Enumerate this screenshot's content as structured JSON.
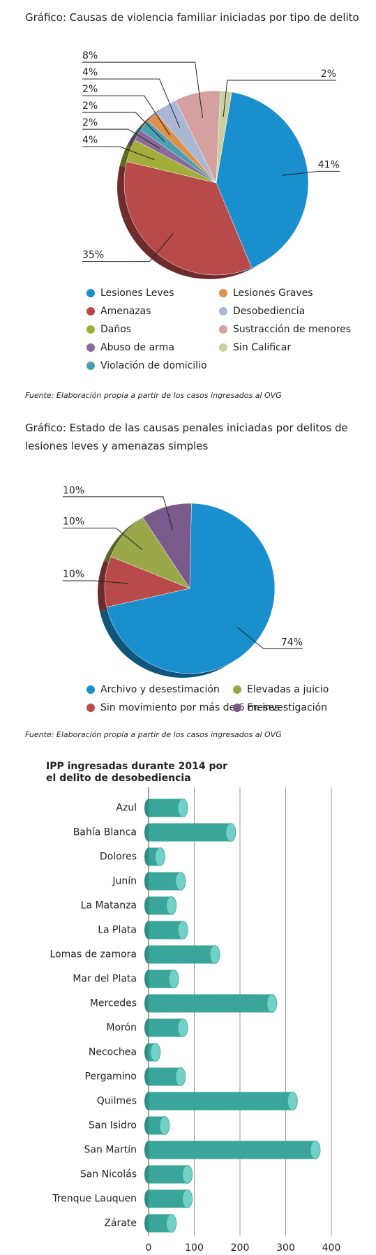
{
  "chart_data": [
    {
      "type": "pie",
      "title": "Gráfico: Causas de violencia familiar iniciadas por tipo de delito",
      "categories": [
        "Lesiones Leves",
        "Amenazas",
        "Daños",
        "Abuso de arma",
        "Violación de domicilio",
        "Lesiones Graves",
        "Desobediencia",
        "Sustracción de menores",
        "Sin Calificar"
      ],
      "values": [
        41,
        35,
        4,
        2,
        2,
        2,
        4,
        8,
        2
      ],
      "value_labels": [
        "41%",
        "35%",
        "4%",
        "2%",
        "2%",
        "2%",
        "4%",
        "8%",
        "2%"
      ],
      "colors": [
        "#1a8fce",
        "#b84a4a",
        "#a3ad3a",
        "#8a6a9a",
        "#4a9fb0",
        "#e0904a",
        "#a9b7d4",
        "#d4a0a0",
        "#c8d0a0"
      ],
      "source": "Fuente: Elaboración propia a partir de los casos ingresados al OVG"
    },
    {
      "type": "pie",
      "title": "Gráfico: Estado de las causas penales iniciadas por delitos de lesiones leves y amenazas simples",
      "categories": [
        "Archivo y desestimación",
        "Sin movimiento por más de 6 meses",
        "Elevadas a juicio",
        "En investigación"
      ],
      "values": [
        74,
        10,
        10,
        10
      ],
      "value_labels": [
        "74%",
        "10%",
        "10%",
        "10%"
      ],
      "colors": [
        "#1a8fce",
        "#b84a4a",
        "#9aa84a",
        "#7a5a8a"
      ],
      "source": "Fuente: Elaboración propia a partir de los casos ingresados al OVG"
    },
    {
      "type": "bar",
      "orientation": "horizontal",
      "title": "IPP ingresadas durante 2014 por el delito de desobediencia",
      "categories": [
        "Azul",
        "Bahía Blanca",
        "Dolores",
        "Junín",
        "La Matanza",
        "La Plata",
        "Lomas de zamora",
        "Mar del Plata",
        "Mercedes",
        "Morón",
        "Necochea",
        "Pergamino",
        "Quilmes",
        "San Isidro",
        "San Martín",
        "San Nicolás",
        "Trenque Lauquen",
        "Zárate"
      ],
      "values": [
        75,
        180,
        25,
        70,
        50,
        75,
        145,
        55,
        270,
        75,
        15,
        70,
        315,
        35,
        365,
        85,
        85,
        50
      ],
      "color": "#3aa59a",
      "xlim": [
        0,
        400
      ],
      "xticks": [
        0,
        100,
        200,
        300,
        400
      ],
      "grid": true
    }
  ]
}
